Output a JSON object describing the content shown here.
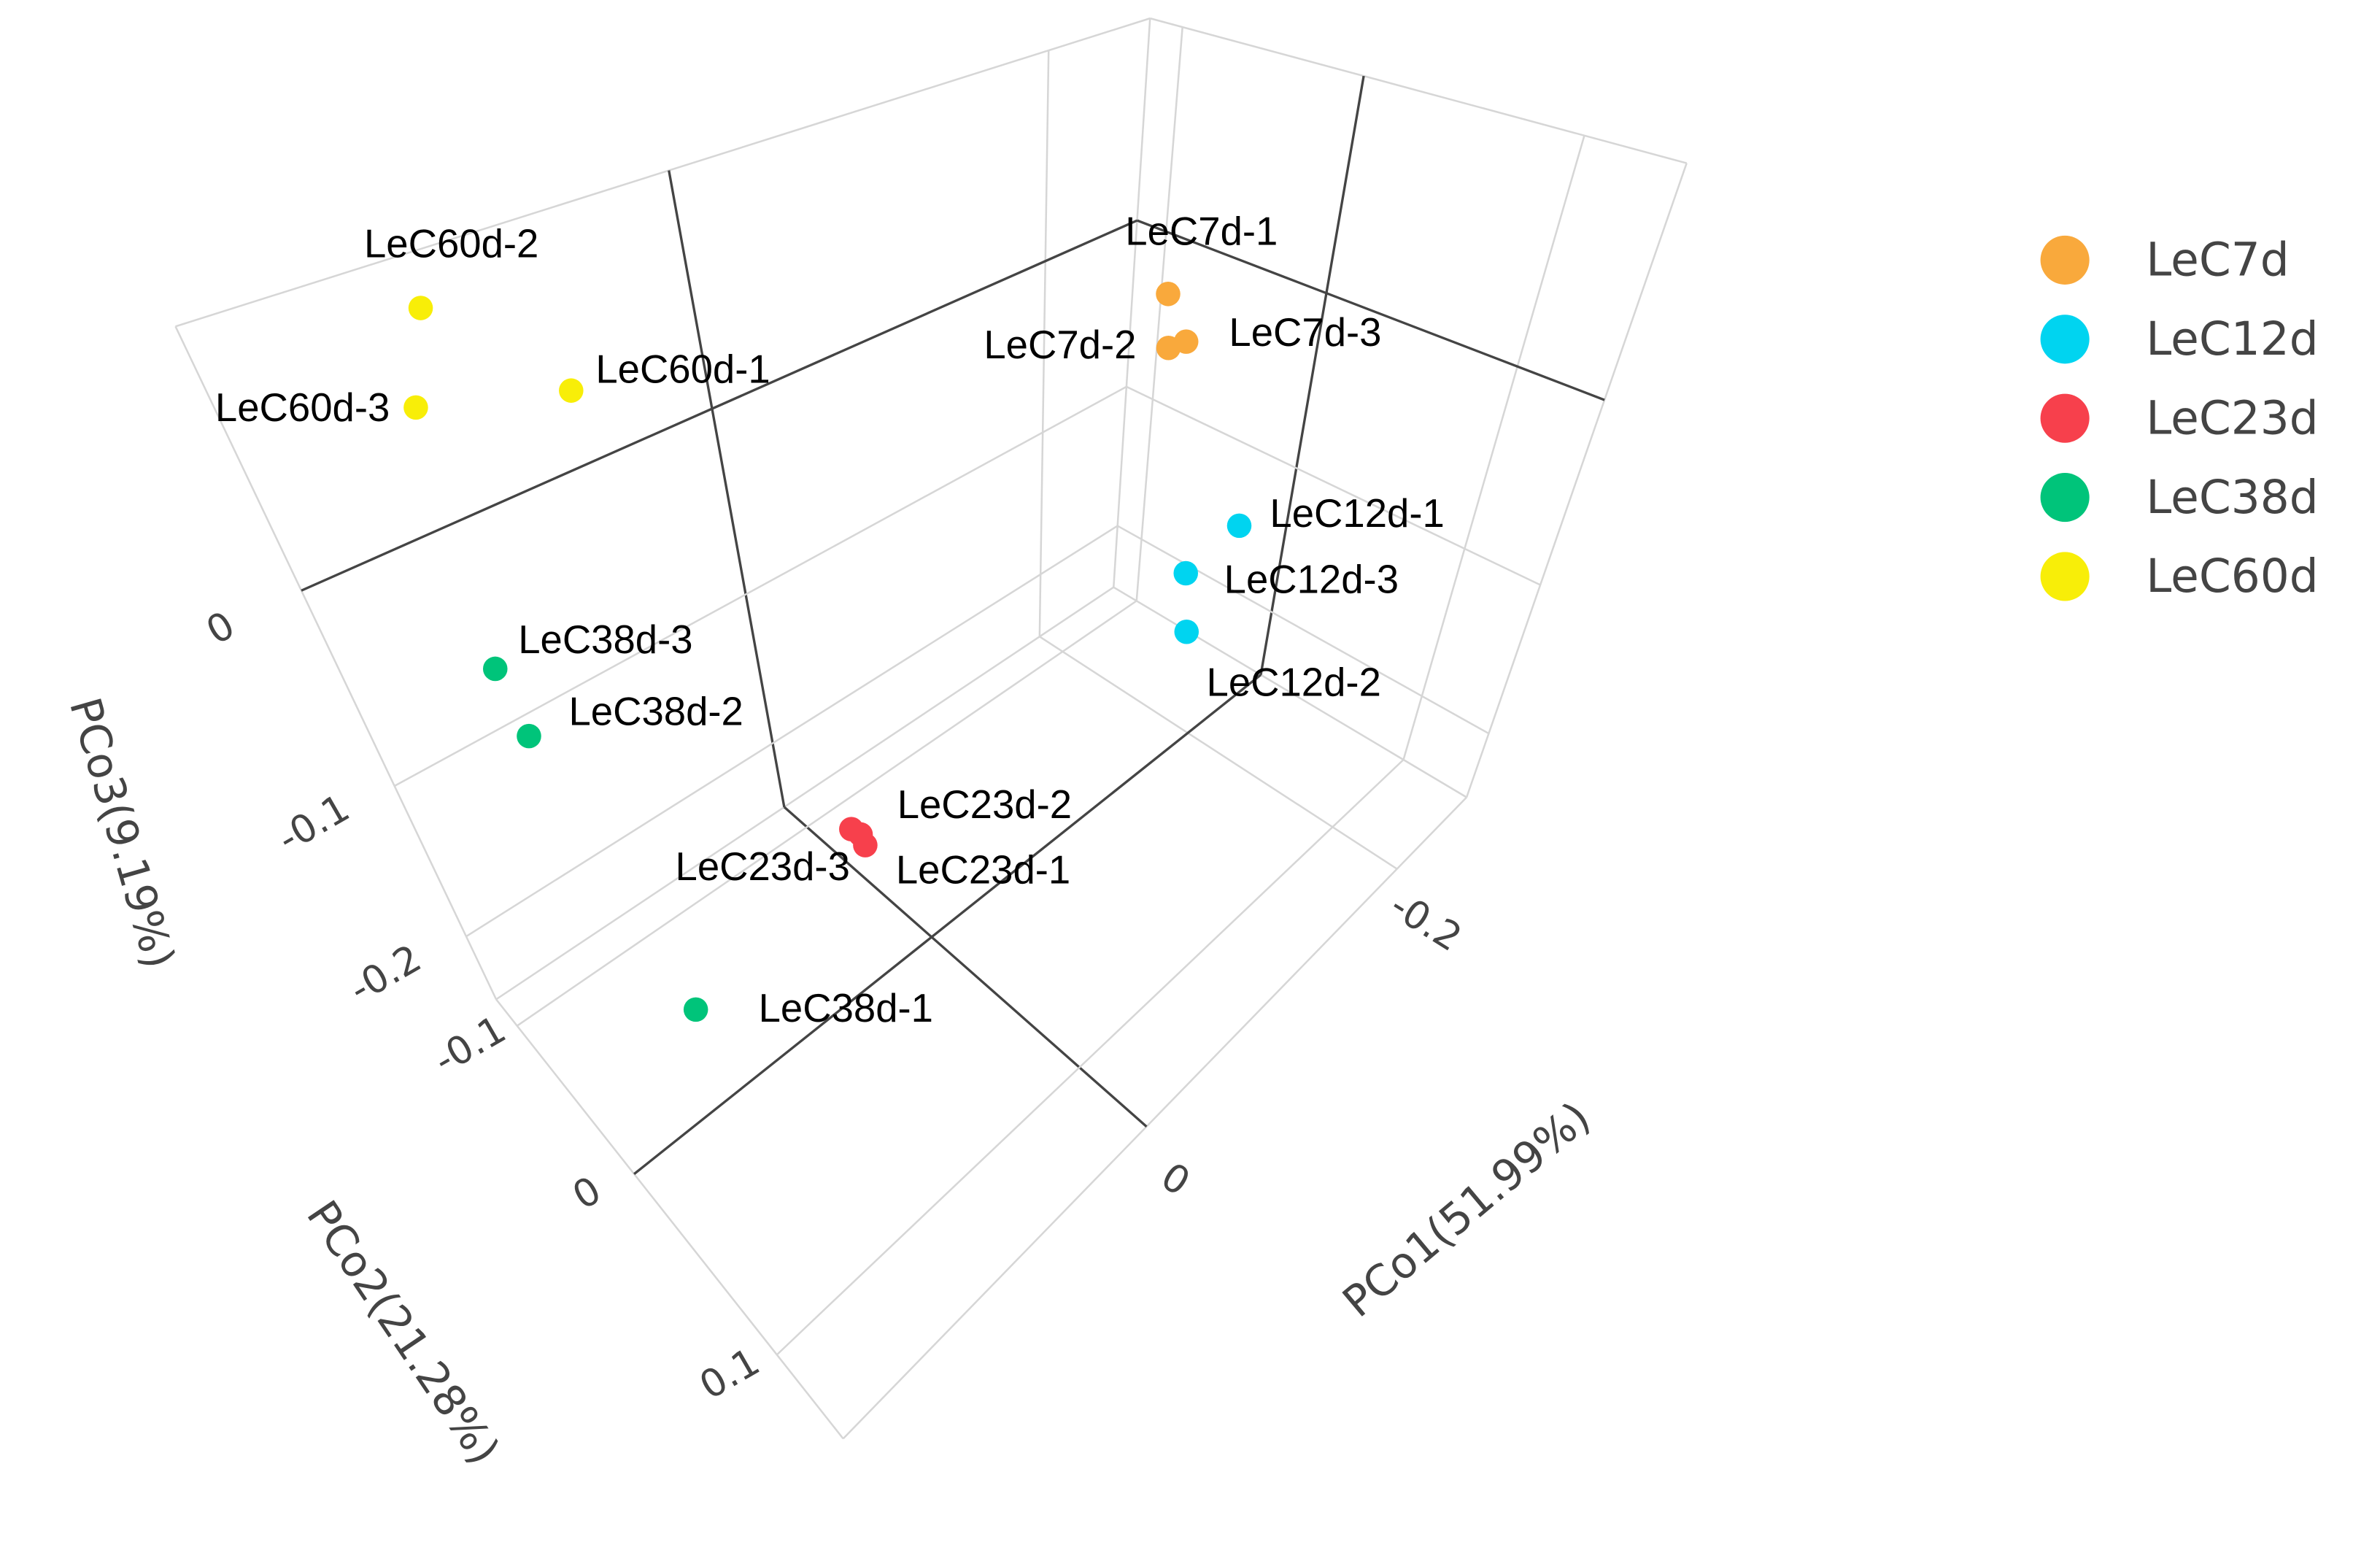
{
  "chart_data": {
    "type": "scatter3d",
    "xlabel": "PCo1(51.99%)",
    "ylabel": "PCo2(21.28%)",
    "zlabel": "PCo3(9.19%)",
    "xlim": [
      -0.27,
      0.17
    ],
    "ylim": [
      -0.12,
      0.14
    ],
    "zlim": [
      -0.25,
      0.1
    ],
    "xticks": [
      -0.2,
      0
    ],
    "yticks": [
      -0.1,
      0,
      0.1
    ],
    "zticks": [
      -0.2,
      -0.1,
      0
    ],
    "grid": true,
    "legend": "right",
    "series": [
      {
        "name": "LeC7d",
        "color": "#f9a93c",
        "labels": [
          "LeC7d-1",
          "LeC7d-2",
          "LeC7d-3"
        ],
        "x": [
          -0.108,
          -0.111,
          -0.115
        ],
        "y": [
          0.03,
          0.03,
          0.035
        ],
        "z": [
          0.066,
          0.043,
          0.046
        ]
      },
      {
        "name": "LeC12d",
        "color": "#00d4f0",
        "labels": [
          "LeC12d-1",
          "LeC12d-2",
          "LeC12d-3"
        ],
        "x": [
          -0.099,
          -0.087,
          -0.082
        ],
        "y": [
          0.08,
          0.07,
          0.07
        ],
        "z": [
          -0.008,
          -0.06,
          -0.027
        ]
      },
      {
        "name": "LeC23d",
        "color": "#f7404c",
        "labels": [
          "LeC23d-1",
          "LeC23d-2",
          "LeC23d-3"
        ],
        "x": [
          0.067,
          0.072,
          0.065
        ],
        "y": [
          0.05,
          0.05,
          0.045
        ],
        "z": [
          -0.079,
          -0.066,
          -0.079
        ]
      },
      {
        "name": "LeC38d",
        "color": "#00c47a",
        "labels": [
          "LeC38d-1",
          "LeC38d-2",
          "LeC38d-3"
        ],
        "x": [
          0.113,
          0.138,
          0.138
        ],
        "y": [
          -0.03,
          -0.04,
          -0.05
        ],
        "z": [
          -0.222,
          -0.037,
          -0.012
        ]
      },
      {
        "name": "LeC60d",
        "color": "#f8ee08",
        "labels": [
          "LeC60d-1",
          "LeC60d-2",
          "LeC60d-3"
        ],
        "x": [
          0.066,
          0.104,
          0.116
        ],
        "y": [
          -0.1,
          -0.11,
          -0.11
        ],
        "z": [
          0.044,
          0.086,
          0.054
        ]
      }
    ]
  }
}
